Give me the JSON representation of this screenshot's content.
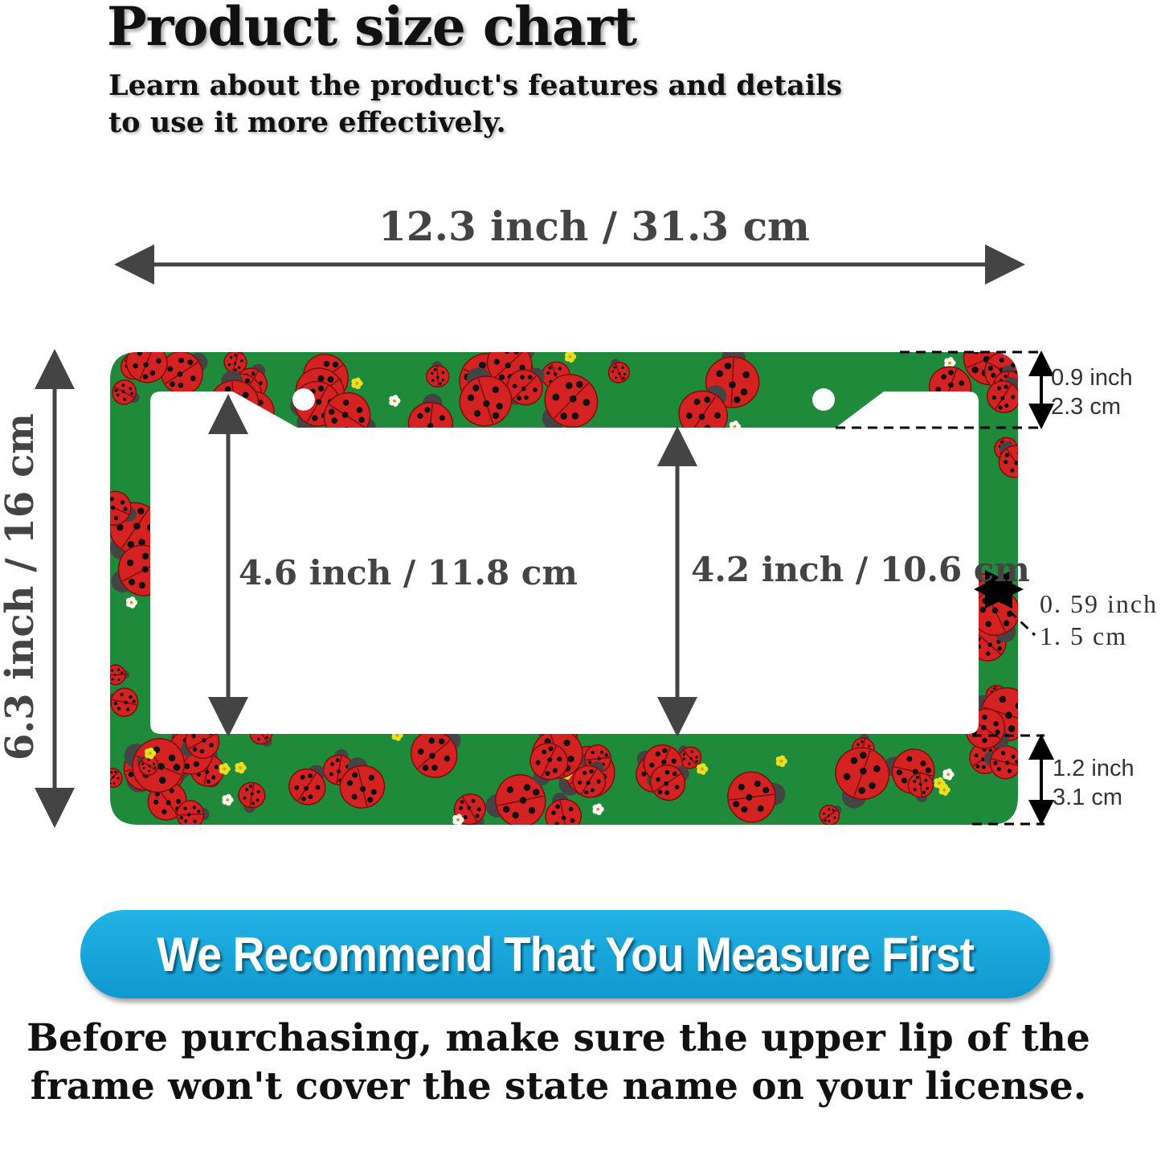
{
  "header": {
    "title": "Product size chart",
    "subtitle_lines": [
      "Learn about the product's features and details",
      "to use it more effectively."
    ]
  },
  "dimensions": {
    "width": "12.3 inch / 31.3 cm",
    "height": "6.3 inch / 16 cm",
    "inner_left_height": "4.6 inch / 11.8 cm",
    "inner_center_height": "4.2 inch / 10.6 cm",
    "top_border": {
      "inch": "0.9 inch",
      "cm": "2.3 cm"
    },
    "side_border": {
      "inch": "0. 59 inch",
      "cm": "1. 5 cm"
    },
    "bottom_border": {
      "inch": "1.2 inch",
      "cm": "3.1 cm"
    }
  },
  "frame": {
    "pattern": "ladybug",
    "colors": {
      "background": "#1e8a3a",
      "ladybug": "#d42222",
      "spots": "#111111",
      "flower_white": "#ffffff",
      "flower_yellow": "#e8e020"
    }
  },
  "banner": {
    "text": "We Recommend That You Measure First",
    "color": "#17a5dc"
  },
  "note": "Before purchasing, make sure the upper lip of the frame won't cover the state name on your license."
}
